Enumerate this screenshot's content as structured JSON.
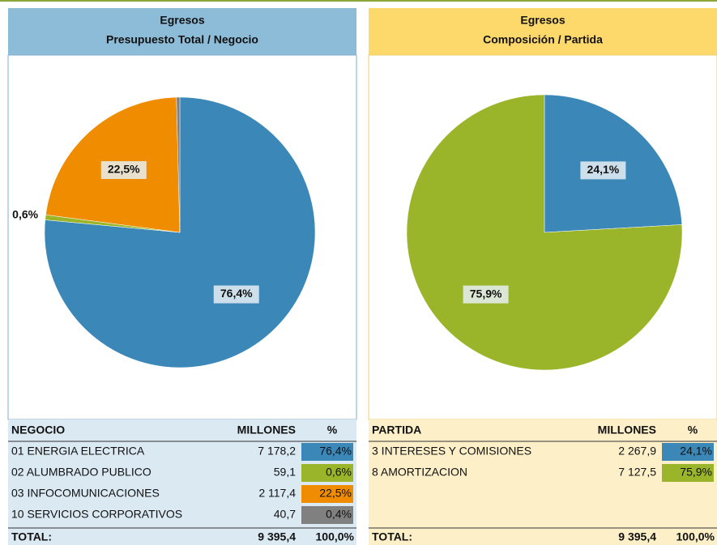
{
  "chart_data": [
    {
      "type": "pie",
      "title": [
        "Egresos",
        "Presupuesto Total / Negocio"
      ],
      "categories": [
        "01 ENERGIA ELECTRICA",
        "02 ALUMBRADO PUBLICO",
        "03 INFOCOMUNICACIONES",
        "10 SERVICIOS CORPORATIVOS"
      ],
      "values": [
        76.4,
        0.6,
        22.5,
        0.4
      ],
      "value_labels": [
        "76,4%",
        "0,6%",
        "22,5%",
        null
      ],
      "colors": [
        "#3a87b8",
        "#9ab52a",
        "#f08c00",
        "#808080"
      ],
      "table": {
        "headers": [
          "NEGOCIO",
          "MILLONES",
          "%"
        ],
        "millions": [
          "7 178,2",
          "59,1",
          "2 117,4",
          "40,7"
        ],
        "percent": [
          "76,4%",
          "0,6%",
          "22,5%",
          "0,4%"
        ],
        "total": [
          "TOTAL:",
          "9 395,4",
          "100,0%"
        ]
      }
    },
    {
      "type": "pie",
      "title": [
        "Egresos",
        "Composición / Partida"
      ],
      "categories": [
        "3 INTERESES Y COMISIONES",
        "8 AMORTIZACION"
      ],
      "values": [
        24.1,
        75.9
      ],
      "value_labels": [
        "24,1%",
        "75,9%"
      ],
      "colors": [
        "#3a87b8",
        "#9ab52a"
      ],
      "table": {
        "headers": [
          "PARTIDA",
          "MILLONES",
          "%"
        ],
        "millions": [
          "2 267,9",
          "7 127,5"
        ],
        "percent": [
          "24,1%",
          "75,9%"
        ],
        "total": [
          "TOTAL:",
          "9 395,4",
          "100,0%"
        ]
      }
    }
  ]
}
